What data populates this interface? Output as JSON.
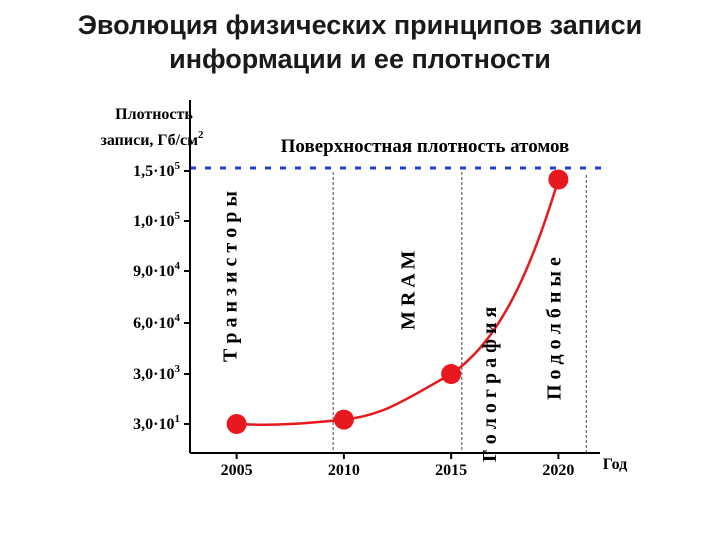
{
  "slide": {
    "title_line1": "Эволюция физических принципов записи",
    "title_line2": "информации и ее плотности"
  },
  "colors": {
    "curve": "#e8191e",
    "limit_line": "#1f3fd6",
    "axis": "#000000",
    "grid": "#444444"
  },
  "chart_data": {
    "type": "line",
    "title": "",
    "ylabel_line1": "Плотность",
    "ylabel_line2_prefix": "записи, Гб/см",
    "ylabel_line2_sup": "2",
    "xlabel": "Год",
    "x_ticks": [
      "2005",
      "2010",
      "2015",
      "2020"
    ],
    "x_range": [
      2002.5,
      2022.5
    ],
    "y_scale": "categorical-nonlinear",
    "y_ticks": [
      {
        "mant": "3,0·10",
        "exp": "1",
        "value": 30
      },
      {
        "mant": "3,0·10",
        "exp": "3",
        "value": 3000
      },
      {
        "mant": "6,0·10",
        "exp": "4",
        "value": 60000
      },
      {
        "mant": "9,0·10",
        "exp": "4",
        "value": 90000
      },
      {
        "mant": "1,0·10",
        "exp": "5",
        "value": 100000
      },
      {
        "mant": "1,5·10",
        "exp": "5",
        "value": 150000
      }
    ],
    "points": [
      {
        "x": 2005,
        "y": 30
      },
      {
        "x": 2010,
        "y": 45
      },
      {
        "x": 2015,
        "y": 3000
      },
      {
        "x": 2020,
        "y": 140000
      }
    ],
    "limit_line": {
      "y": 150000,
      "label": "Поверхностная плотность атомов"
    },
    "vlines": [
      2009.5,
      2015.5,
      2021.3
    ],
    "annotations": [
      {
        "text": "Т р а н з и с т о р ы",
        "x": 2005.0
      },
      {
        "text": "M R A M",
        "x": 2013.3
      },
      {
        "text": "Г о л о г р а ф и я",
        "x": 2017.1
      },
      {
        "text": "П о д о л б н ы е",
        "x": 2020.1
      }
    ],
    "grid": false
  }
}
